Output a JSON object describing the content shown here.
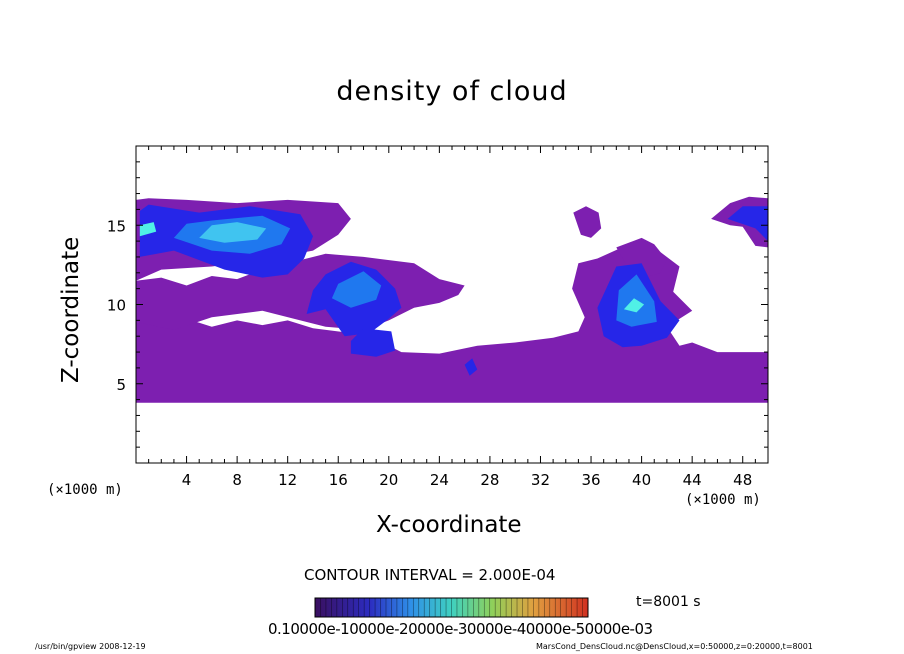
{
  "chart_data": {
    "type": "heatmap",
    "title": "density of cloud",
    "xlabel": "X-coordinate",
    "ylabel": "Z-coordinate",
    "x_unit": "(×1000 m)",
    "x_unit_right": "(×1000 m)",
    "xlim": [
      0,
      50
    ],
    "ylim": [
      0,
      20
    ],
    "x_ticks": [
      4,
      8,
      12,
      16,
      20,
      24,
      28,
      32,
      36,
      40,
      44,
      48
    ],
    "y_ticks": [
      5,
      10,
      15
    ],
    "contour_interval_text": "CONTOUR INTERVAL = 2.000E-04",
    "colorbar_labels_text": "0.10000e-10000e-20000e-30000e-40000e-50000e-03",
    "time_text": "t=8001 s",
    "colors": {
      "level1": "#7d1fb0",
      "level2": "#5a1ad6",
      "level3": "#2626e8",
      "level4": "#1f78ef",
      "level5": "#40c4f0",
      "level6": "#50f0e6"
    }
  },
  "footer": {
    "left": "/usr/bin/gpview   2008-12-19",
    "right": "MarsCond_DensCloud.nc@DensCloud,x=0:50000,z=0:20000,t=8001"
  }
}
